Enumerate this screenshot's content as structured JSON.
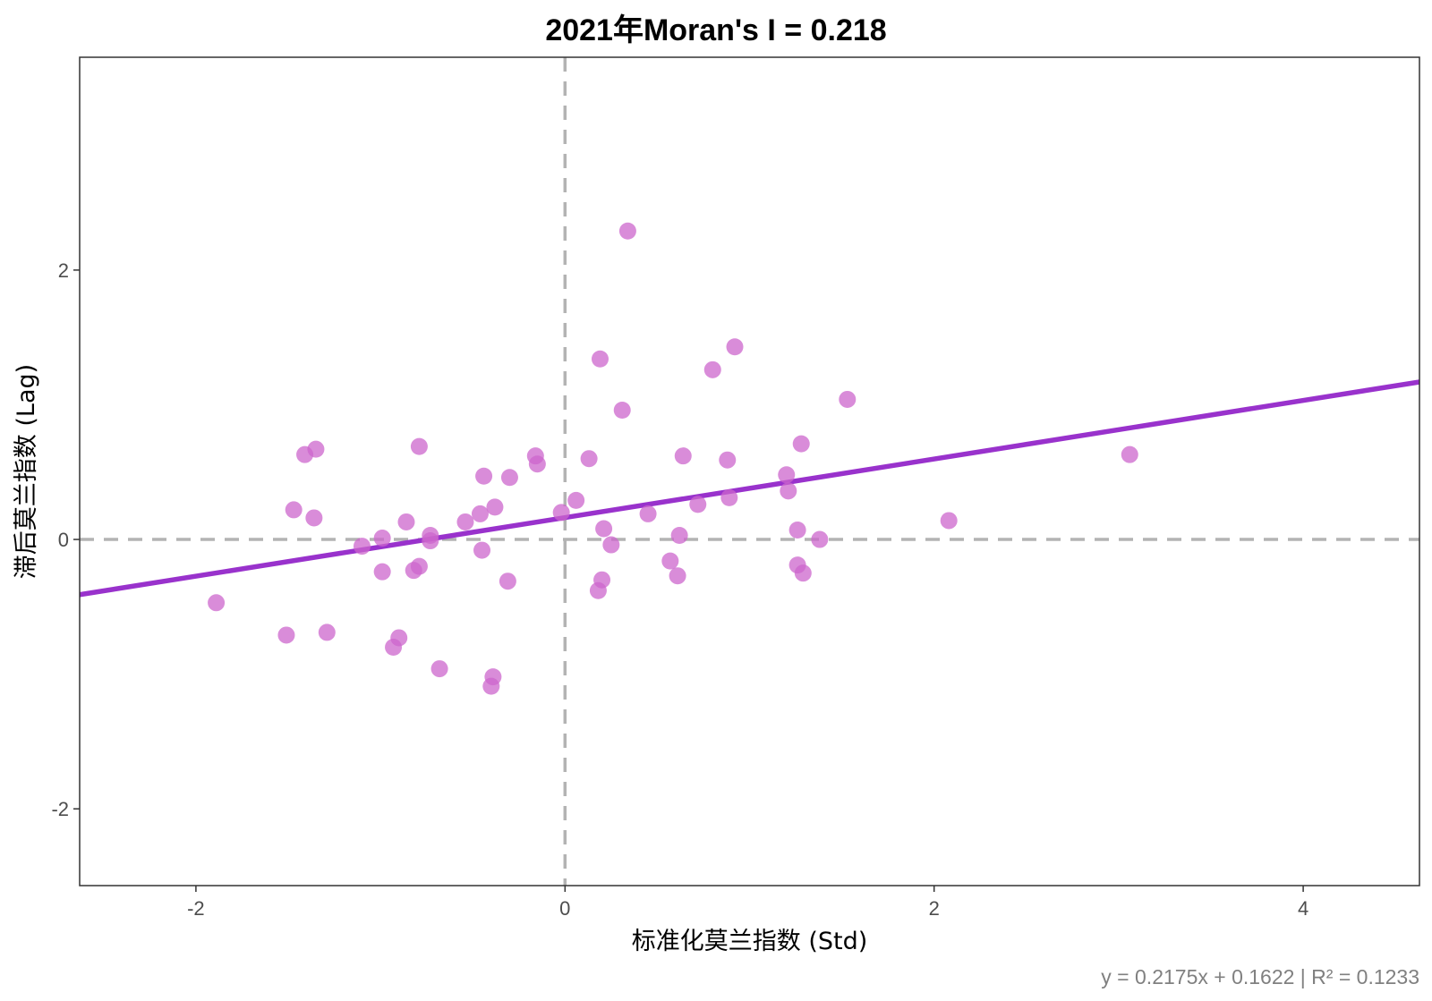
{
  "chart_data": {
    "type": "scatter",
    "title": "2021年Moran's I = 0.218",
    "xlabel": "标准化莫兰指数 (Std)",
    "ylabel": "滞后莫兰指数 (Lag)",
    "caption": "y = 0.2175x + 0.1622 | R² = 0.1233",
    "xlim": [
      -2.63,
      4.63
    ],
    "ylim": [
      -2.57,
      3.58
    ],
    "x_ticks": [
      -2,
      0,
      2,
      4
    ],
    "y_ticks": [
      -2,
      0,
      2
    ],
    "grid": false,
    "reference_lines": {
      "x": 0,
      "y": 0
    },
    "fit_line": {
      "slope": 0.2175,
      "intercept": 0.1622
    },
    "colors": {
      "points": "#cc66cc",
      "fit_line": "#9932cc",
      "reference": "#b3b3b3",
      "panel_border": "#333333"
    },
    "points": [
      {
        "x": 0.34,
        "y": 2.29
      },
      {
        "x": 0.19,
        "y": 1.34
      },
      {
        "x": 0.92,
        "y": 1.43
      },
      {
        "x": 0.8,
        "y": 1.26
      },
      {
        "x": 0.31,
        "y": 0.96
      },
      {
        "x": 1.53,
        "y": 1.04
      },
      {
        "x": 3.06,
        "y": 0.63
      },
      {
        "x": 1.28,
        "y": 0.71
      },
      {
        "x": 0.64,
        "y": 0.62
      },
      {
        "x": 0.88,
        "y": 0.59
      },
      {
        "x": 0.13,
        "y": 0.6
      },
      {
        "x": -0.16,
        "y": 0.62
      },
      {
        "x": -0.15,
        "y": 0.56
      },
      {
        "x": -0.3,
        "y": 0.46
      },
      {
        "x": -0.44,
        "y": 0.47
      },
      {
        "x": -0.79,
        "y": 0.69
      },
      {
        "x": -1.35,
        "y": 0.67
      },
      {
        "x": -1.41,
        "y": 0.63
      },
      {
        "x": 1.2,
        "y": 0.48
      },
      {
        "x": 1.21,
        "y": 0.36
      },
      {
        "x": 0.89,
        "y": 0.31
      },
      {
        "x": 0.72,
        "y": 0.26
      },
      {
        "x": 0.06,
        "y": 0.29
      },
      {
        "x": -0.02,
        "y": 0.2
      },
      {
        "x": 0.45,
        "y": 0.19
      },
      {
        "x": -0.38,
        "y": 0.24
      },
      {
        "x": -0.46,
        "y": 0.19
      },
      {
        "x": -0.54,
        "y": 0.13
      },
      {
        "x": -1.47,
        "y": 0.22
      },
      {
        "x": -1.36,
        "y": 0.16
      },
      {
        "x": -0.86,
        "y": 0.13
      },
      {
        "x": -0.73,
        "y": 0.03
      },
      {
        "x": -0.73,
        "y": -0.01
      },
      {
        "x": -0.99,
        "y": 0.01
      },
      {
        "x": -1.1,
        "y": -0.05
      },
      {
        "x": 0.21,
        "y": 0.08
      },
      {
        "x": 0.62,
        "y": 0.03
      },
      {
        "x": 0.25,
        "y": -0.04
      },
      {
        "x": 1.26,
        "y": 0.07
      },
      {
        "x": 1.38,
        "y": 0.0
      },
      {
        "x": 2.08,
        "y": 0.14
      },
      {
        "x": -0.45,
        "y": -0.08
      },
      {
        "x": 0.57,
        "y": -0.16
      },
      {
        "x": 0.61,
        "y": -0.27
      },
      {
        "x": 1.26,
        "y": -0.19
      },
      {
        "x": 1.29,
        "y": -0.25
      },
      {
        "x": -0.79,
        "y": -0.2
      },
      {
        "x": -0.82,
        "y": -0.23
      },
      {
        "x": -0.99,
        "y": -0.24
      },
      {
        "x": 0.2,
        "y": -0.3
      },
      {
        "x": 0.18,
        "y": -0.38
      },
      {
        "x": -0.31,
        "y": -0.31
      },
      {
        "x": -1.89,
        "y": -0.47
      },
      {
        "x": -1.51,
        "y": -0.71
      },
      {
        "x": -1.29,
        "y": -0.69
      },
      {
        "x": -0.9,
        "y": -0.73
      },
      {
        "x": -0.93,
        "y": -0.8
      },
      {
        "x": -0.68,
        "y": -0.96
      },
      {
        "x": -0.39,
        "y": -1.02
      },
      {
        "x": -0.4,
        "y": -1.09
      }
    ]
  }
}
